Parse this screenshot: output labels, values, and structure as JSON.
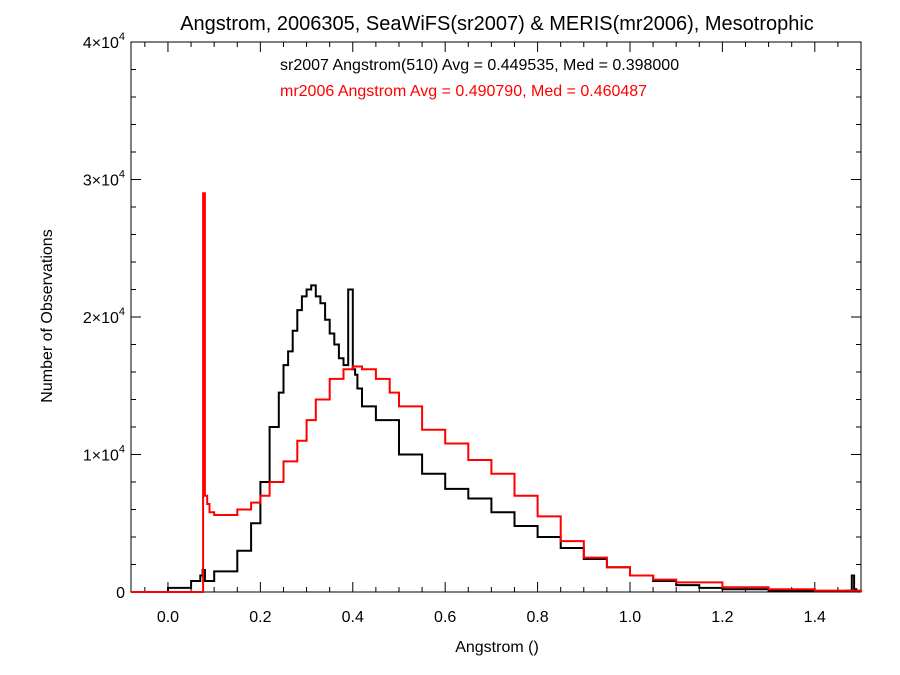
{
  "chart_data": {
    "type": "line",
    "title": "Angstrom, 2006305, SeaWiFS(sr2007) & MERIS(mr2006), Mesotrophic",
    "xlabel": "Angstrom ()",
    "ylabel": "Number of Observations",
    "xlim": [
      -0.08,
      1.5
    ],
    "ylim": [
      0,
      40000
    ],
    "x_ticks": [
      "0.0",
      "0.2",
      "0.4",
      "0.6",
      "0.8",
      "1.0",
      "1.2",
      "1.4"
    ],
    "y_ticks": [
      {
        "base": "0",
        "exp": ""
      },
      {
        "base": "1×10",
        "exp": "4"
      },
      {
        "base": "2×10",
        "exp": "4"
      },
      {
        "base": "3×10",
        "exp": "4"
      },
      {
        "base": "4×10",
        "exp": "4"
      }
    ],
    "annotations": [
      "sr2007 Angstrom(510) Avg = 0.449535, Med = 0.398000",
      "mr2006 Angstrom Avg = 0.490790, Med = 0.460487"
    ],
    "grid": false,
    "series": [
      {
        "name": "sr2007",
        "color": "#000000",
        "x": [
          -0.08,
          0.0,
          0.05,
          0.07,
          0.075,
          0.08,
          0.1,
          0.15,
          0.18,
          0.2,
          0.22,
          0.24,
          0.25,
          0.26,
          0.27,
          0.28,
          0.29,
          0.3,
          0.31,
          0.32,
          0.33,
          0.34,
          0.35,
          0.36,
          0.37,
          0.38,
          0.39,
          0.4,
          0.405,
          0.41,
          0.42,
          0.45,
          0.5,
          0.55,
          0.6,
          0.65,
          0.7,
          0.75,
          0.8,
          0.85,
          0.9,
          0.95,
          1.0,
          1.05,
          1.1,
          1.15,
          1.2,
          1.3,
          1.4,
          1.47,
          1.48,
          1.485,
          1.49,
          1.5
        ],
        "values": [
          0,
          300,
          800,
          1200,
          1600,
          800,
          1500,
          3000,
          5000,
          8000,
          12000,
          14500,
          16500,
          17500,
          19000,
          20500,
          21500,
          22000,
          22300,
          21500,
          21000,
          19800,
          18800,
          18000,
          17000,
          16500,
          22000,
          16200,
          15800,
          14800,
          13500,
          12500,
          10000,
          8600,
          7500,
          6800,
          5800,
          4800,
          4000,
          3200,
          2400,
          1800,
          1200,
          800,
          500,
          300,
          200,
          100,
          50,
          100,
          1200,
          200,
          50,
          0
        ]
      },
      {
        "name": "mr2006",
        "color": "#ff0000",
        "x": [
          -0.08,
          0.05,
          0.075,
          0.076,
          0.08,
          0.085,
          0.09,
          0.1,
          0.12,
          0.15,
          0.18,
          0.2,
          0.22,
          0.25,
          0.28,
          0.3,
          0.32,
          0.35,
          0.38,
          0.4,
          0.42,
          0.45,
          0.48,
          0.5,
          0.55,
          0.6,
          0.65,
          0.7,
          0.75,
          0.8,
          0.85,
          0.9,
          0.95,
          1.0,
          1.05,
          1.1,
          1.2,
          1.3,
          1.4,
          1.5
        ],
        "values": [
          0,
          0,
          0,
          29000,
          7000,
          6400,
          5800,
          5600,
          5600,
          6000,
          6500,
          7000,
          8000,
          9500,
          11000,
          12500,
          14000,
          15500,
          16200,
          16400,
          16200,
          15500,
          14500,
          13500,
          11800,
          10800,
          9600,
          8600,
          7000,
          5500,
          3700,
          2500,
          1800,
          1200,
          900,
          700,
          350,
          200,
          100,
          0
        ]
      }
    ]
  }
}
